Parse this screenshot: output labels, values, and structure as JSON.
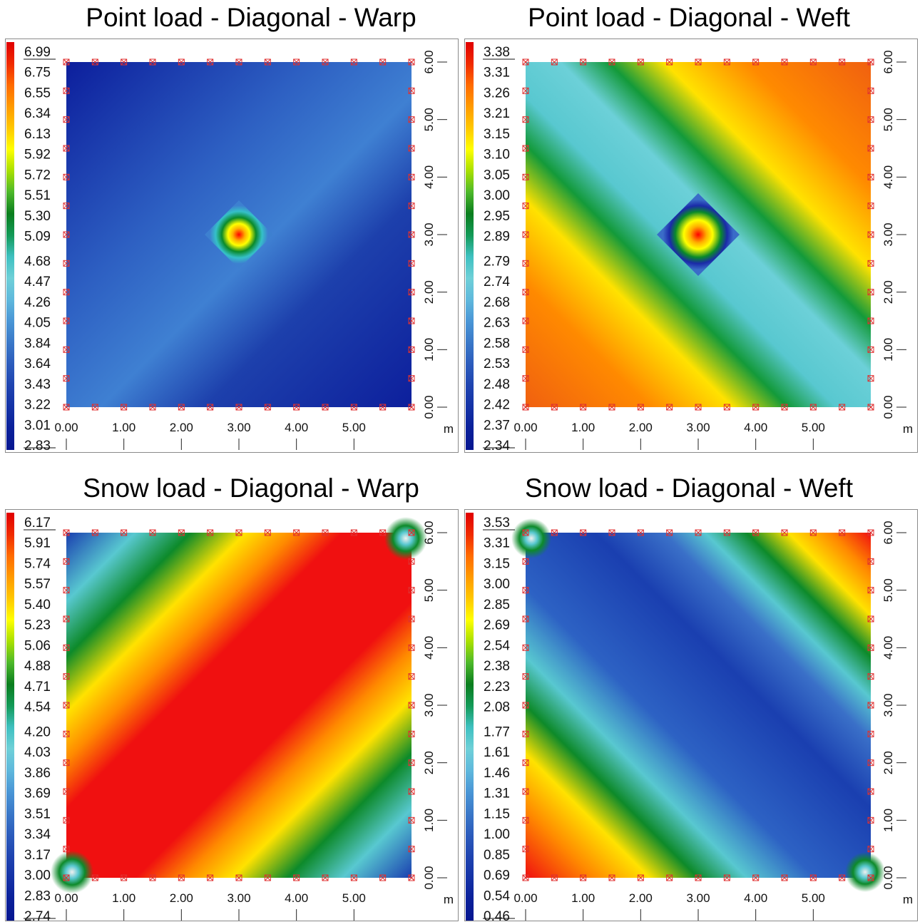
{
  "figure": {
    "unit_label": "m",
    "panels": [
      {
        "title": "Point load - Diagonal - Warp",
        "legend_values": [
          "6.99",
          "6.75",
          "6.55",
          "6.34",
          "6.13",
          "5.92",
          "5.72",
          "5.51",
          "5.30",
          "5.09",
          "4.68",
          "4.47",
          "4.26",
          "4.05",
          "3.84",
          "3.64",
          "3.43",
          "3.22",
          "3.01",
          "2.83"
        ],
        "colors": {
          "low": "#0a1a9e",
          "mid": "#2a5fc4",
          "hot": "#e01010"
        }
      },
      {
        "title": "Point load - Diagonal - Weft",
        "legend_values": [
          "3.38",
          "3.31",
          "3.26",
          "3.21",
          "3.15",
          "3.10",
          "3.05",
          "3.00",
          "2.95",
          "2.89",
          "2.79",
          "2.74",
          "2.68",
          "2.63",
          "2.58",
          "2.53",
          "2.48",
          "2.42",
          "2.37",
          "2.34"
        ],
        "colors": {
          "low": "#67d0d8",
          "band": "#0d8a2a",
          "hot": "#f06a10"
        }
      },
      {
        "title": "Snow load - Diagonal - Warp",
        "legend_values": [
          "6.17",
          "5.91",
          "5.74",
          "5.57",
          "5.40",
          "5.23",
          "5.06",
          "4.88",
          "4.71",
          "4.54",
          "4.20",
          "4.03",
          "3.86",
          "3.69",
          "3.51",
          "3.34",
          "3.17",
          "3.00",
          "2.83",
          "2.74"
        ],
        "colors": {
          "low": "#1a44b8",
          "band": "#0d8a2a",
          "hot": "#f01010"
        }
      },
      {
        "title": "Snow load - Diagonal - Weft",
        "legend_values": [
          "3.53",
          "3.31",
          "3.15",
          "3.00",
          "2.85",
          "2.69",
          "2.54",
          "2.38",
          "2.23",
          "2.08",
          "1.77",
          "1.61",
          "1.46",
          "1.31",
          "1.15",
          "1.00",
          "0.85",
          "0.69",
          "0.54",
          "0.46"
        ],
        "colors": {
          "low": "#1a3fb0",
          "band": "#0d8a2a",
          "hot": "#f01010"
        }
      }
    ]
  },
  "chart_data": [
    {
      "type": "heatmap",
      "title": "Point load - Diagonal - Warp",
      "x_ticks": [
        "0.00",
        "1.00",
        "2.00",
        "3.00",
        "4.00",
        "5.00"
      ],
      "y_ticks": [
        "0.00",
        "1.00",
        "2.00",
        "3.00",
        "4.00",
        "5.00",
        "6.00"
      ],
      "xlim": [
        0,
        6
      ],
      "ylim": [
        0,
        6
      ],
      "legend_values": [
        "6.99",
        "6.75",
        "6.55",
        "6.34",
        "6.13",
        "5.92",
        "5.72",
        "5.51",
        "5.30",
        "5.09",
        "4.68",
        "4.47",
        "4.26",
        "4.05",
        "3.84",
        "3.64",
        "3.43",
        "3.22",
        "3.01",
        "2.83"
      ],
      "peak": {
        "x": 3.0,
        "y": 3.0,
        "value": 6.99
      },
      "min_value": 2.83,
      "max_value": 6.99
    },
    {
      "type": "heatmap",
      "title": "Point load - Diagonal - Weft",
      "x_ticks": [
        "0.00",
        "1.00",
        "2.00",
        "3.00",
        "4.00",
        "5.00"
      ],
      "y_ticks": [
        "0.00",
        "1.00",
        "2.00",
        "3.00",
        "4.00",
        "5.00",
        "6.00"
      ],
      "xlim": [
        0,
        6
      ],
      "ylim": [
        0,
        6
      ],
      "legend_values": [
        "3.38",
        "3.31",
        "3.26",
        "3.21",
        "3.15",
        "3.10",
        "3.05",
        "3.00",
        "2.95",
        "2.89",
        "2.79",
        "2.74",
        "2.68",
        "2.63",
        "2.58",
        "2.53",
        "2.48",
        "2.42",
        "2.37",
        "2.34"
      ],
      "peak": {
        "x": 3.0,
        "y": 3.0,
        "value": 3.38
      },
      "min_value": 2.34,
      "max_value": 3.38
    },
    {
      "type": "heatmap",
      "title": "Snow load - Diagonal - Warp",
      "x_ticks": [
        "0.00",
        "1.00",
        "2.00",
        "3.00",
        "4.00",
        "5.00"
      ],
      "y_ticks": [
        "0.00",
        "1.00",
        "2.00",
        "3.00",
        "4.00",
        "5.00",
        "6.00"
      ],
      "xlim": [
        0,
        6
      ],
      "ylim": [
        0,
        6
      ],
      "legend_values": [
        "6.17",
        "5.91",
        "5.74",
        "5.57",
        "5.40",
        "5.23",
        "5.06",
        "4.88",
        "4.71",
        "4.54",
        "4.20",
        "4.03",
        "3.86",
        "3.69",
        "3.51",
        "3.34",
        "3.17",
        "3.00",
        "2.83",
        "2.74"
      ],
      "min_value": 2.74,
      "max_value": 6.17
    },
    {
      "type": "heatmap",
      "title": "Snow load - Diagonal - Weft",
      "x_ticks": [
        "0.00",
        "1.00",
        "2.00",
        "3.00",
        "4.00",
        "5.00"
      ],
      "y_ticks": [
        "0.00",
        "1.00",
        "2.00",
        "3.00",
        "4.00",
        "5.00",
        "6.00"
      ],
      "xlim": [
        0,
        6
      ],
      "ylim": [
        0,
        6
      ],
      "legend_values": [
        "3.53",
        "3.31",
        "3.15",
        "3.00",
        "2.85",
        "2.69",
        "2.54",
        "2.38",
        "2.23",
        "2.08",
        "1.77",
        "1.61",
        "1.46",
        "1.31",
        "1.15",
        "1.00",
        "0.85",
        "0.69",
        "0.54",
        "0.46"
      ],
      "min_value": 0.46,
      "max_value": 3.53
    }
  ]
}
